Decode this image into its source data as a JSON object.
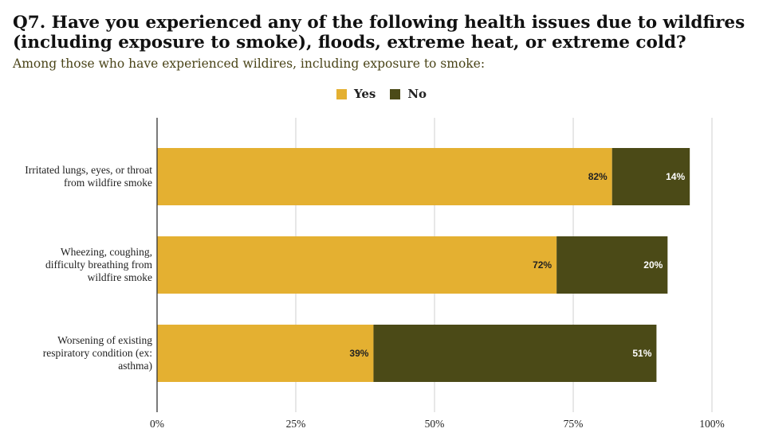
{
  "title_line1": "Q7. Have you experienced any of the following health issues due to wildfires",
  "title_line2": "(including exposure to smoke), floods, extreme heat, or extreme cold?",
  "subtitle": "Among those who have experienced wildires, including exposure to smoke:",
  "legend": [
    {
      "label": "Yes",
      "color": "#e4b031"
    },
    {
      "label": "No",
      "color": "#4b4a17"
    }
  ],
  "chart_data": {
    "type": "bar",
    "orientation": "horizontal",
    "stacked": true,
    "categories": [
      [
        "Irritated lungs, eyes, or throat",
        "from wildfire smoke"
      ],
      [
        "Wheezing, coughing,",
        "difficulty breathing from",
        "wildfire smoke"
      ],
      [
        "Worsening of existing",
        "respiratory condition (ex:",
        "asthma)"
      ]
    ],
    "series": [
      {
        "name": "Yes",
        "color": "#e4b031",
        "values": [
          82,
          72,
          39
        ],
        "labels": [
          "82%",
          "72%",
          "39%"
        ]
      },
      {
        "name": "No",
        "color": "#4b4a17",
        "values": [
          14,
          20,
          51
        ],
        "labels": [
          "14%",
          "20%",
          "51%"
        ]
      }
    ],
    "xlim": [
      0,
      100
    ],
    "ticks": [
      0,
      25,
      50,
      75,
      100
    ],
    "tick_labels": [
      "0%",
      "25%",
      "50%",
      "75%",
      "100%"
    ],
    "grid": true,
    "legend_position": "top"
  }
}
